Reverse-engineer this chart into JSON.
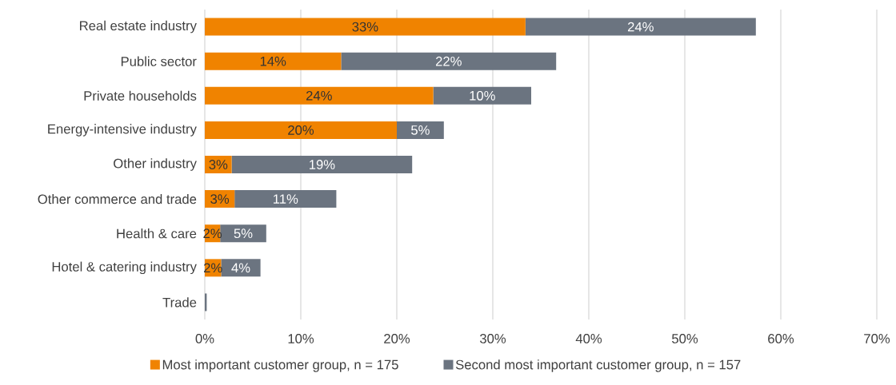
{
  "chart_data": {
    "type": "bar",
    "orientation": "horizontal",
    "stacked": true,
    "categories": [
      "Real estate industry",
      "Public sector",
      "Private households",
      "Energy-intensive industry",
      "Other industry",
      "Other commerce and trade",
      "Health & care",
      "Hotel & catering industry",
      "Trade"
    ],
    "series": [
      {
        "name": "Most important customer group, n = 175",
        "color": "#f08300",
        "values": [
          33.4,
          14.2,
          23.8,
          20.0,
          2.8,
          3.1,
          1.6,
          1.7,
          0
        ],
        "value_labels": [
          "33%",
          "14%",
          "24%",
          "20%",
          "3%",
          "3%",
          "2%",
          "2%",
          null
        ]
      },
      {
        "name": "Second most important customer group, n = 157",
        "color": "#6b7480",
        "values": [
          24.0,
          22.4,
          10.2,
          4.9,
          18.8,
          10.6,
          4.8,
          4.1,
          0.2
        ],
        "value_labels": [
          "24%",
          "22%",
          "10%",
          "5%",
          "19%",
          "11%",
          "5%",
          "4%",
          null
        ]
      }
    ],
    "xlim": [
      0,
      70
    ],
    "xticks": [
      {
        "value": 0,
        "label": "0%"
      },
      {
        "value": 10,
        "label": "10%"
      },
      {
        "value": 20,
        "label": "20%"
      },
      {
        "value": 30,
        "label": "30%"
      },
      {
        "value": 40,
        "label": "40%"
      },
      {
        "value": 50,
        "label": "50%"
      },
      {
        "value": 60,
        "label": "60%"
      },
      {
        "value": 70,
        "label": "70%"
      }
    ],
    "grid": "x",
    "legend": "bottom"
  }
}
